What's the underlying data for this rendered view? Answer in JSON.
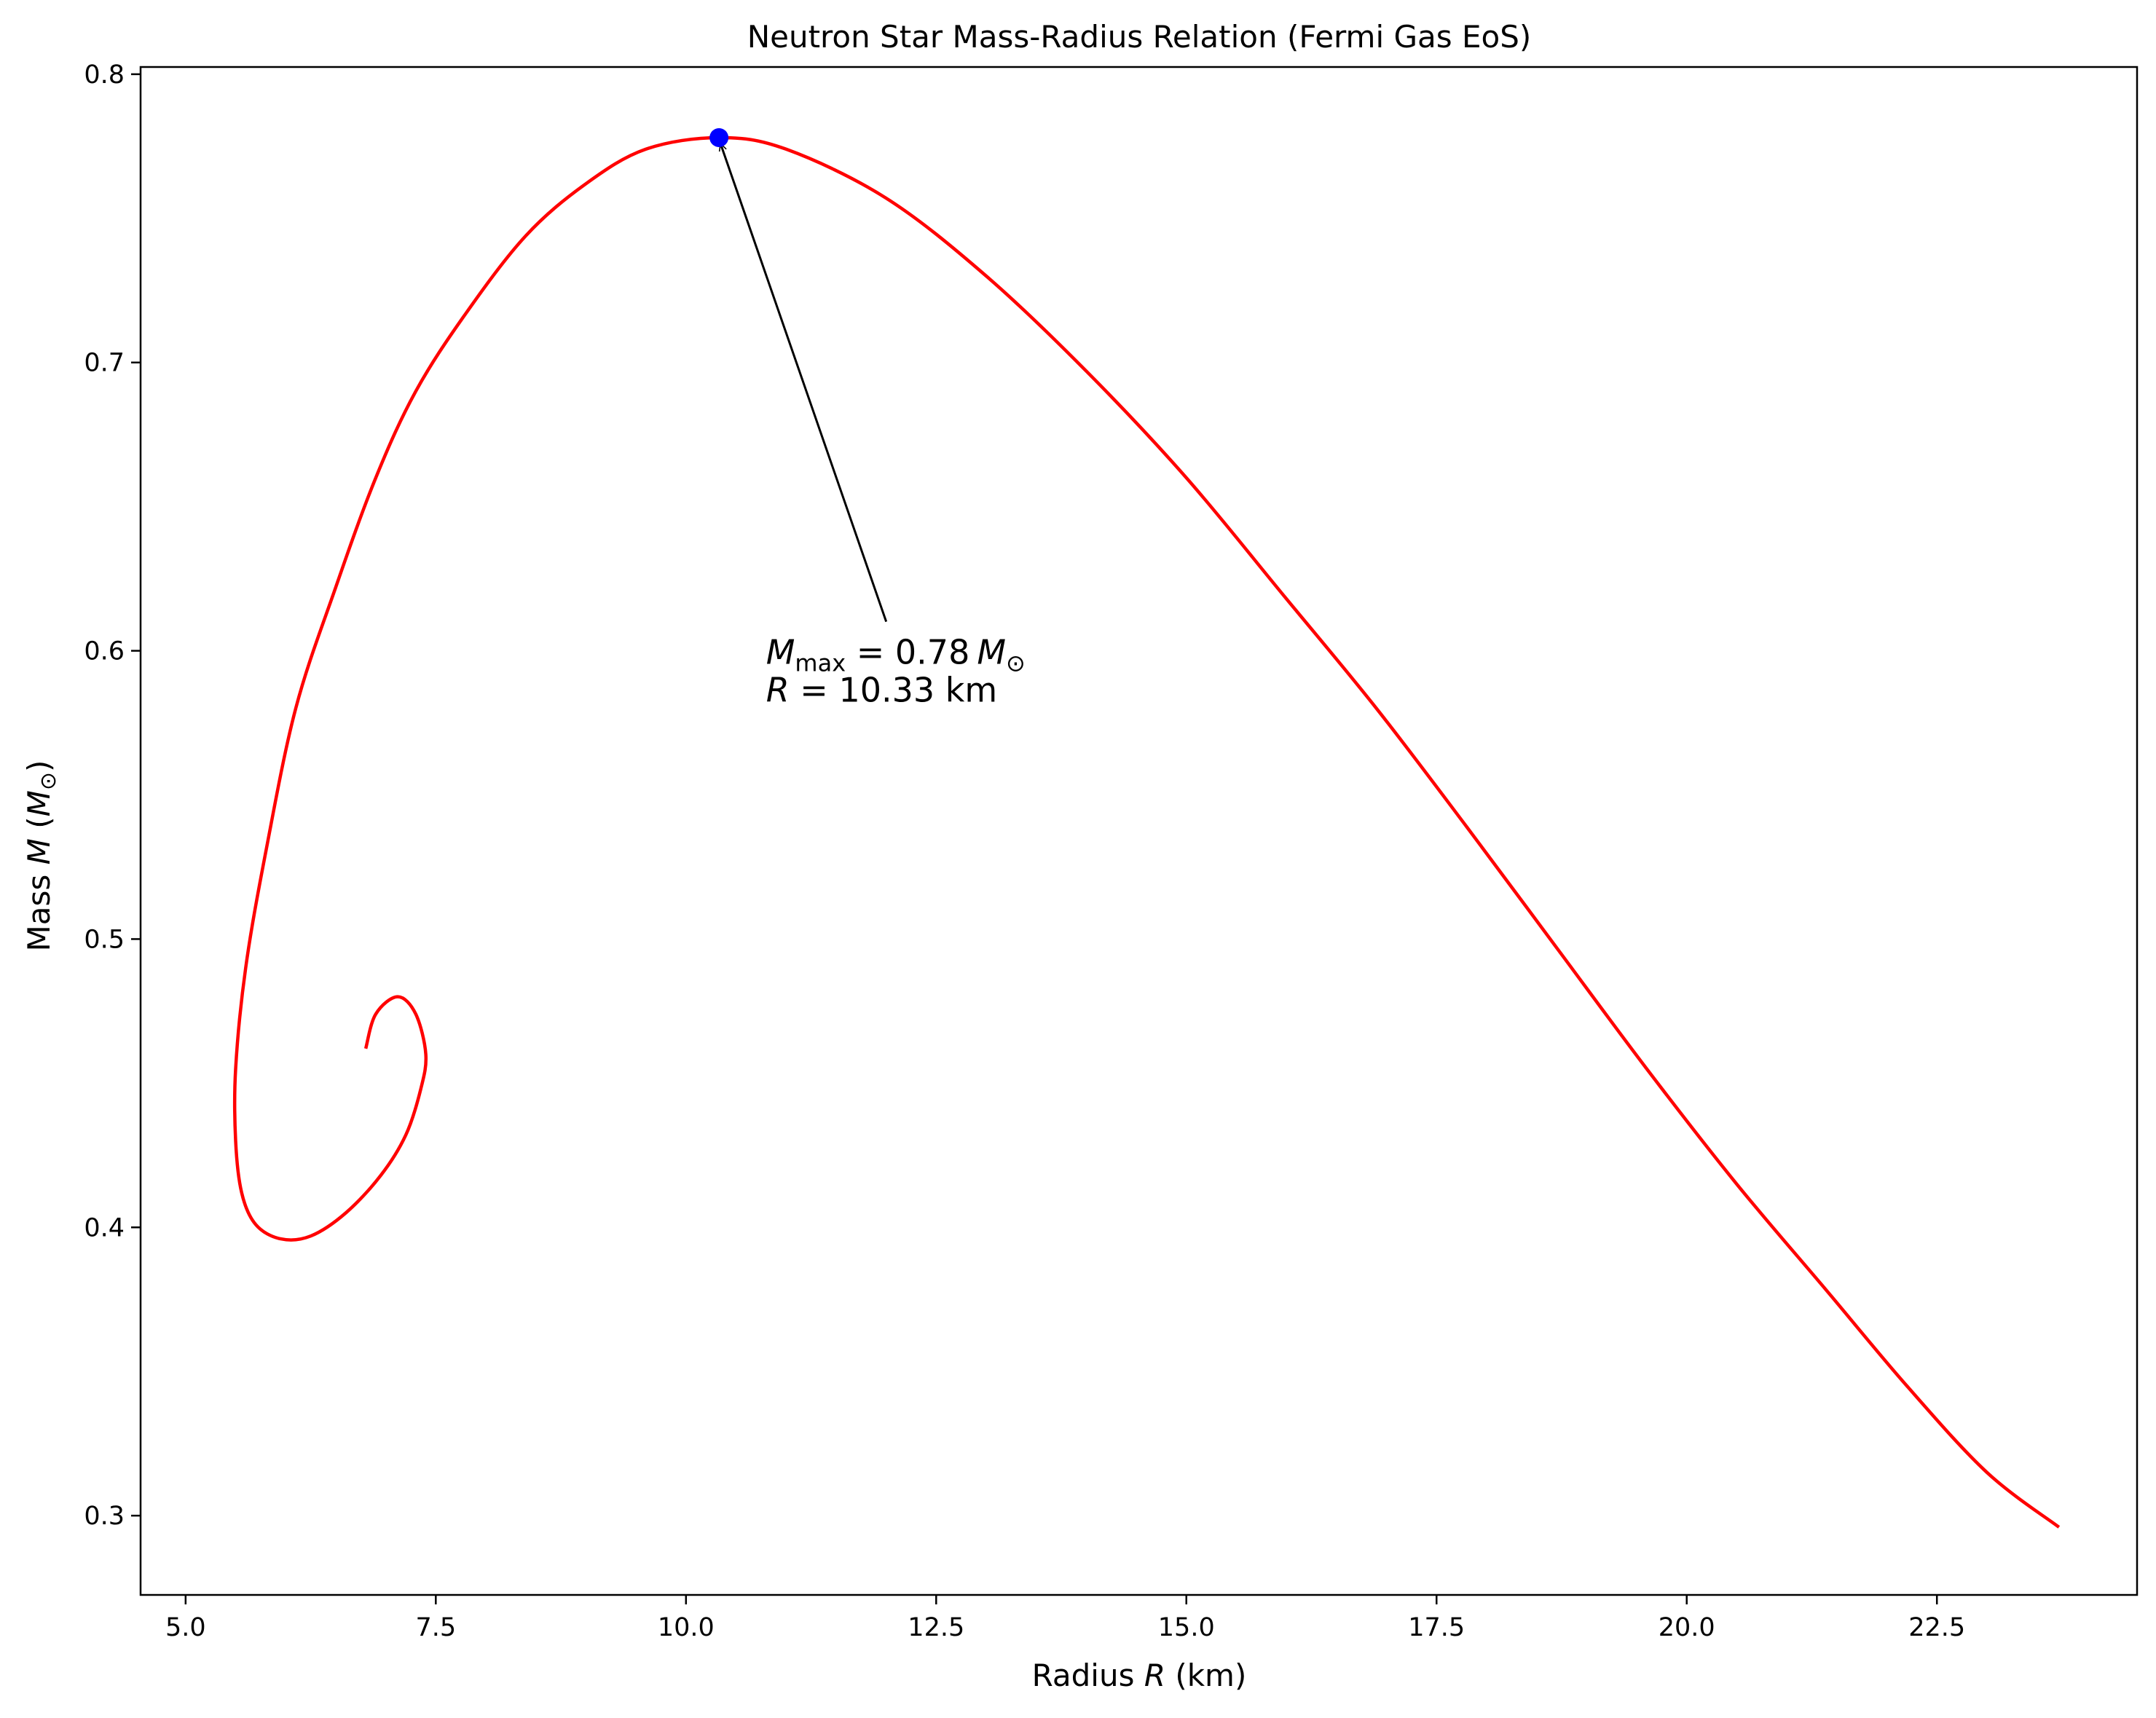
{
  "chart_data": {
    "type": "line",
    "title": "Neutron Star Mass-Radius Relation (Fermi Gas EoS)",
    "xlabel": {
      "prefix": "Radius ",
      "var": "R",
      "suffix": " (km)"
    },
    "ylabel": {
      "prefix": "Mass ",
      "var": "M",
      "open": " (",
      "unit": "M",
      "unit_sub": "⊙",
      "close": ")"
    },
    "xlim": [
      4.55,
      24.5
    ],
    "ylim": [
      0.2725,
      0.8025
    ],
    "xticks": [
      5.0,
      7.5,
      10.0,
      12.5,
      15.0,
      17.5,
      20.0,
      22.5
    ],
    "xtick_labels": [
      "5.0",
      "7.5",
      "10.0",
      "12.5",
      "15.0",
      "17.5",
      "20.0",
      "22.5"
    ],
    "yticks": [
      0.3,
      0.4,
      0.5,
      0.6,
      0.7,
      0.8
    ],
    "ytick_labels": [
      "0.3",
      "0.4",
      "0.5",
      "0.6",
      "0.7",
      "0.8"
    ],
    "grid": false,
    "series": [
      {
        "color": "#ff0000",
        "x": [
          23.72,
          23.0,
          22.2,
          21.4,
          20.5,
          19.6,
          18.7,
          17.8,
          16.9,
          16.0,
          15.0,
          14.0,
          13.0,
          12.0,
          11.0,
          10.33,
          9.6,
          9.0,
          8.4,
          7.8,
          7.3,
          6.9,
          6.5,
          6.1,
          5.8,
          5.6,
          5.5,
          5.5,
          5.56,
          5.7,
          5.95,
          6.25,
          6.6,
          6.95,
          7.2,
          7.35,
          7.4,
          7.3,
          7.12,
          6.9,
          6.8
        ],
        "y": [
          0.296,
          0.315,
          0.345,
          0.378,
          0.415,
          0.455,
          0.497,
          0.539,
          0.58,
          0.618,
          0.66,
          0.697,
          0.73,
          0.757,
          0.774,
          0.778,
          0.774,
          0.762,
          0.744,
          0.717,
          0.69,
          0.66,
          0.622,
          0.58,
          0.53,
          0.49,
          0.455,
          0.43,
          0.412,
          0.401,
          0.396,
          0.397,
          0.405,
          0.418,
          0.432,
          0.448,
          0.46,
          0.474,
          0.48,
          0.474,
          0.462
        ]
      }
    ],
    "marker": {
      "x": 10.33,
      "y": 0.778,
      "color": "#0000ff"
    },
    "annotation": {
      "text_x": 10.8,
      "text_y": 0.6,
      "line1": {
        "var": "M",
        "sub": "max",
        "rest": " = 0.78",
        "unit": "M",
        "unit_sub": "⊙"
      },
      "line2": {
        "var": "R",
        "rest": " = 10.33 km"
      }
    }
  }
}
